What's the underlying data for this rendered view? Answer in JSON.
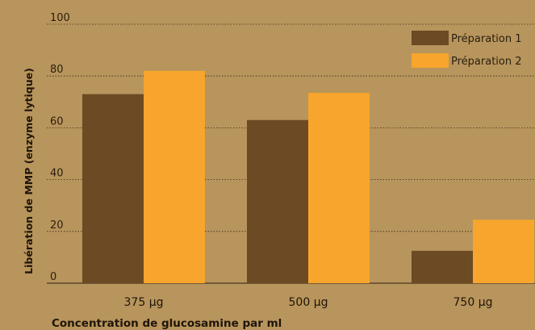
{
  "chart_data": {
    "type": "bar",
    "categories": [
      "375 µg",
      "500 µg",
      "750 µg"
    ],
    "series": [
      {
        "name": "Préparation 1",
        "values": [
          73,
          63,
          12.5
        ]
      },
      {
        "name": "Préparation 2",
        "values": [
          82,
          73.5,
          24.5
        ]
      }
    ],
    "xlabel": "Concentration de glucosamine par ml",
    "ylabel": "Libération de MMP (enzyme lytique)",
    "ylim": [
      0,
      100
    ],
    "yticks": [
      0,
      20,
      40,
      60,
      80,
      100
    ],
    "grid": true,
    "legend_position": "top-right",
    "colors": [
      "#6b4a24",
      "#f7a52c"
    ],
    "background": "#b8955c"
  }
}
